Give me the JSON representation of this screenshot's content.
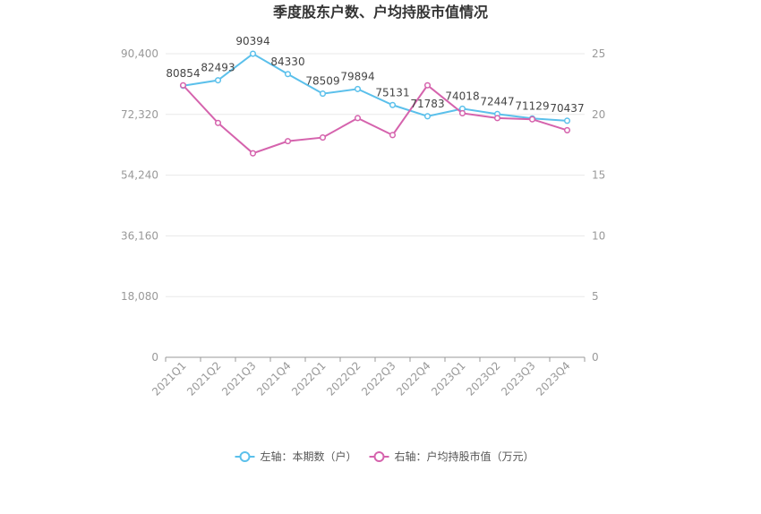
{
  "chart_data": {
    "type": "line",
    "title": "季度股东户数、户均持股市值情况",
    "categories": [
      "2021Q1",
      "2021Q2",
      "2021Q3",
      "2021Q4",
      "2022Q1",
      "2022Q2",
      "2022Q3",
      "2022Q4",
      "2023Q1",
      "2023Q2",
      "2023Q3",
      "2023Q4"
    ],
    "y_left": {
      "ticks": [
        "0",
        "18,080",
        "36,160",
        "54,240",
        "72,320",
        "90,400"
      ],
      "ylim": [
        0,
        90400
      ]
    },
    "y_right": {
      "ticks": [
        "0",
        "5",
        "10",
        "15",
        "20",
        "25"
      ],
      "ylim": [
        0,
        25
      ]
    },
    "series": [
      {
        "name": "左轴：本期数（户）",
        "axis": "left",
        "color": "#5bc0eb",
        "values": [
          80854,
          82493,
          90394,
          84330,
          78509,
          79894,
          75131,
          71783,
          74018,
          72447,
          71129,
          70437
        ],
        "labels": [
          "80854",
          "82493",
          "90394",
          "84330",
          "78509",
          "79894",
          "75131",
          "71783",
          "74018",
          "72447",
          "71129",
          "70437"
        ]
      },
      {
        "name": "右轴：户均持股市值（万元）",
        "axis": "right",
        "color": "#d563ad",
        "values": [
          22.4,
          19.3,
          16.8,
          17.8,
          18.1,
          19.7,
          18.3,
          22.4,
          20.1,
          19.7,
          19.6,
          18.7
        ]
      }
    ],
    "legend": {
      "placement": "bottom-center"
    },
    "grid": true
  }
}
